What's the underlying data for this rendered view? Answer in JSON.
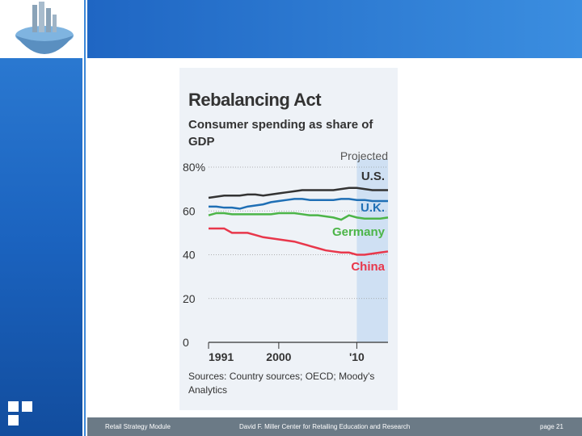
{
  "footer": {
    "left": "Retail Strategy Module",
    "center": "David F. Miller Center for Retailing Education and Research",
    "right": "page 21"
  },
  "chart_data": {
    "type": "line",
    "title": "Rebalancing Act",
    "subtitle": "Consumer spending as share of GDP",
    "source": "Sources: Country sources; OECD; Moody's Analytics",
    "projection": {
      "label": "Projected",
      "xlim": [
        2010,
        2014
      ]
    },
    "x": [
      1991,
      1992,
      1993,
      1994,
      1995,
      1996,
      1997,
      1998,
      1999,
      2000,
      2001,
      2002,
      2003,
      2004,
      2005,
      2006,
      2007,
      2008,
      2009,
      2010,
      2011,
      2012,
      2013,
      2014
    ],
    "series": [
      {
        "name": "U.S.",
        "color": "#333333",
        "values": [
          66,
          66.5,
          67,
          67,
          67,
          67.5,
          67.5,
          67,
          67.5,
          68,
          68.5,
          69,
          69.5,
          69.5,
          69.5,
          69.5,
          69.5,
          70,
          70.5,
          70.5,
          70,
          69.5,
          69.5,
          69.5
        ]
      },
      {
        "name": "U.K.",
        "color": "#1f6fb5",
        "values": [
          62,
          62,
          61.5,
          61.5,
          61,
          62,
          62.5,
          63,
          64,
          64.5,
          65,
          65.5,
          65.5,
          65,
          65,
          65,
          65,
          65.5,
          65.5,
          65,
          65,
          64.5,
          64.5,
          64.5
        ]
      },
      {
        "name": "Germany",
        "color": "#4cb548",
        "values": [
          58,
          59,
          59,
          58.5,
          58.5,
          58.5,
          58.5,
          58.5,
          58.5,
          59,
          59,
          59,
          58.5,
          58,
          58,
          57.5,
          57,
          56,
          58,
          57,
          56.5,
          56.5,
          56.5,
          57
        ]
      },
      {
        "name": "China",
        "color": "#e8374b",
        "values": [
          52,
          52,
          52,
          50,
          50,
          50,
          49,
          48,
          47.5,
          47,
          46.5,
          46,
          45,
          44,
          43,
          42,
          41.5,
          41,
          41,
          40,
          40,
          40.5,
          41,
          41.5
        ]
      }
    ],
    "xlim": [
      1991,
      2014
    ],
    "xticks": [
      1991,
      2000,
      {
        "value": 2010,
        "label": "'10"
      }
    ],
    "ylim": [
      0,
      80
    ],
    "yticks": [
      0,
      20,
      40,
      60,
      {
        "value": 80,
        "label": "80%"
      }
    ],
    "grid": true
  }
}
